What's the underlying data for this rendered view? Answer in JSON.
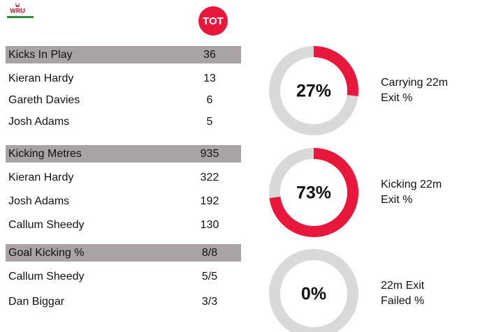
{
  "logo": "WRU",
  "team": "TOT",
  "sections": [
    {
      "header": [
        "Kicks In Play",
        36
      ],
      "rows": [
        [
          "Kieran Hardy",
          13
        ],
        [
          "Gareth Davies",
          6
        ],
        [
          "Josh Adams",
          5
        ]
      ]
    },
    {
      "header": [
        "Kicking Metres",
        935
      ],
      "rows": [
        [
          "Kieran Hardy",
          322
        ],
        [
          "Josh Adams",
          192
        ],
        [
          "Callum Sheedy",
          130
        ]
      ]
    },
    {
      "header": [
        "Goal Kicking %",
        "8/8"
      ],
      "rows": [
        [
          "Callum Sheedy",
          "5/5"
        ],
        [
          "Dan Biggar",
          "3/3"
        ]
      ]
    }
  ],
  "donuts": [
    {
      "value": 27,
      "value_label": "27%",
      "label_lines": [
        "Carrying 22m",
        "Exit %"
      ],
      "color": "#e8173b"
    },
    {
      "value": 73,
      "value_label": "73%",
      "label_lines": [
        "Kicking 22m",
        "Exit %"
      ],
      "color": "#e8173b"
    },
    {
      "value": 0,
      "value_label": "0%",
      "label_lines": [
        "22m Exit",
        "Failed %"
      ],
      "color": "#e8173b"
    }
  ]
}
